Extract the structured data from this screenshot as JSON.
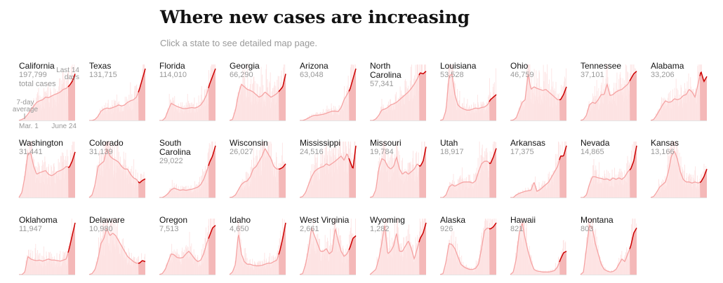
{
  "header": {
    "title": "Where new cases are increasing",
    "subtitle": "Click a state to see detailed map page."
  },
  "annotations": {
    "total_cases": "total cases",
    "last_14": "Last 14 days",
    "avg": "7-day average",
    "start": "Mar. 1",
    "end": "June 24"
  },
  "colors": {
    "daily_bars": "#fde3e3",
    "avg_line": "#f5a3a3",
    "last14_shade": "#f4b8b8",
    "last14_line": "#cc0000"
  },
  "chart_data": {
    "type": "line",
    "title": "Where new cases are increasing",
    "x_range": [
      "Mar. 1",
      "June 24"
    ],
    "highlight": "Last 14 days",
    "note": "values are relative 7-day average levels (fraction of panel height), estimated",
    "states": [
      {
        "name": "California",
        "total": "197,799",
        "avg": [
          0,
          0.02,
          0.05,
          0.12,
          0.2,
          0.28,
          0.35,
          0.38,
          0.4,
          0.45,
          0.44,
          0.47,
          0.5,
          0.52,
          0.55,
          0.6,
          0.62,
          0.67,
          0.75,
          0.9
        ]
      },
      {
        "name": "Texas",
        "total": "131,715",
        "avg": [
          0,
          0,
          0.02,
          0.08,
          0.18,
          0.22,
          0.24,
          0.23,
          0.25,
          0.27,
          0.3,
          0.28,
          0.3,
          0.35,
          0.38,
          0.4,
          0.45,
          0.6,
          0.8,
          1
        ]
      },
      {
        "name": "Florida",
        "total": "114,010",
        "avg": [
          0,
          0,
          0.05,
          0.2,
          0.33,
          0.3,
          0.27,
          0.25,
          0.23,
          0.23,
          0.24,
          0.25,
          0.24,
          0.26,
          0.3,
          0.38,
          0.5,
          0.7,
          0.85,
          1
        ]
      },
      {
        "name": "Georgia",
        "total": "66,290",
        "avg": [
          0,
          0.02,
          0.2,
          0.5,
          0.7,
          0.65,
          0.6,
          0.58,
          0.55,
          0.5,
          0.45,
          0.48,
          0.55,
          0.5,
          0.45,
          0.48,
          0.52,
          0.58,
          0.65,
          0.9
        ]
      },
      {
        "name": "Arizona",
        "total": "63,048",
        "avg": [
          0,
          0,
          0.02,
          0.05,
          0.08,
          0.1,
          0.1,
          0.11,
          0.12,
          0.14,
          0.16,
          0.18,
          0.18,
          0.17,
          0.25,
          0.4,
          0.5,
          0.6,
          0.8,
          1
        ]
      },
      {
        "name": "North Carolina",
        "total": "57,341",
        "avg": [
          0,
          0,
          0.03,
          0.1,
          0.2,
          0.22,
          0.25,
          0.3,
          0.32,
          0.35,
          0.4,
          0.45,
          0.5,
          0.55,
          0.62,
          0.7,
          0.8,
          0.92,
          0.9,
          0.95
        ]
      },
      {
        "name": "Louisiana",
        "total": "53,528",
        "avg": [
          0,
          0.02,
          0.2,
          0.85,
          0.9,
          0.5,
          0.3,
          0.25,
          0.22,
          0.2,
          0.2,
          0.22,
          0.24,
          0.23,
          0.25,
          0.26,
          0.3,
          0.4,
          0.45,
          0.5
        ]
      },
      {
        "name": "Ohio",
        "total": "46,759",
        "avg": [
          0,
          0.01,
          0.05,
          0.2,
          0.35,
          0.4,
          0.9,
          0.6,
          0.65,
          0.62,
          0.6,
          0.58,
          0.6,
          0.55,
          0.5,
          0.45,
          0.4,
          0.4,
          0.5,
          0.65
        ]
      },
      {
        "name": "Tennessee",
        "total": "37,101",
        "avg": [
          0,
          0.02,
          0.1,
          0.3,
          0.35,
          0.33,
          0.4,
          0.5,
          0.5,
          0.7,
          0.48,
          0.5,
          0.55,
          0.58,
          0.6,
          0.65,
          0.7,
          0.8,
          0.9,
          0.95
        ]
      },
      {
        "name": "Alabama",
        "total": "33,206",
        "avg": [
          0,
          0.02,
          0.1,
          0.2,
          0.3,
          0.38,
          0.35,
          0.36,
          0.42,
          0.4,
          0.42,
          0.48,
          0.5,
          0.6,
          0.55,
          0.45,
          0.7,
          0.95,
          0.75,
          0.85
        ]
      },
      {
        "name": "Washington",
        "total": "31,441",
        "avg": [
          0,
          0.1,
          0.4,
          0.85,
          0.85,
          0.6,
          0.45,
          0.48,
          0.5,
          0.52,
          0.45,
          0.42,
          0.45,
          0.5,
          0.52,
          0.55,
          0.6,
          0.58,
          0.7,
          0.88
        ]
      },
      {
        "name": "Colorado",
        "total": "31,139",
        "avg": [
          0,
          0.05,
          0.25,
          0.6,
          0.65,
          0.7,
          0.95,
          0.8,
          0.75,
          0.72,
          0.68,
          0.6,
          0.55,
          0.55,
          0.45,
          0.38,
          0.35,
          0.28,
          0.33,
          0.36
        ]
      },
      {
        "name": "South Carolina",
        "total": "29,022",
        "avg": [
          0,
          0,
          0.03,
          0.08,
          0.15,
          0.18,
          0.16,
          0.14,
          0.15,
          0.14,
          0.15,
          0.16,
          0.18,
          0.2,
          0.25,
          0.35,
          0.5,
          0.68,
          0.8,
          1
        ]
      },
      {
        "name": "Wisconsin",
        "total": "26,027",
        "avg": [
          0,
          0.01,
          0.05,
          0.15,
          0.25,
          0.3,
          0.32,
          0.4,
          0.55,
          0.6,
          0.7,
          0.8,
          0.95,
          0.85,
          0.75,
          0.6,
          0.55,
          0.55,
          0.58,
          0.65
        ]
      },
      {
        "name": "Mississippi",
        "total": "24,516",
        "avg": [
          0,
          0.02,
          0.1,
          0.25,
          0.4,
          0.5,
          0.55,
          0.58,
          0.6,
          0.65,
          0.62,
          0.66,
          0.7,
          0.75,
          0.8,
          0.72,
          0.85,
          0.7,
          0.55,
          1
        ]
      },
      {
        "name": "Missouri",
        "total": "19,784",
        "avg": [
          0,
          0.02,
          0.15,
          0.55,
          0.75,
          0.72,
          0.6,
          0.55,
          0.6,
          0.78,
          0.55,
          0.45,
          0.5,
          0.45,
          0.5,
          0.55,
          0.65,
          0.6,
          0.7,
          0.98
        ]
      },
      {
        "name": "Utah",
        "total": "18,917",
        "avg": [
          0,
          0,
          0.05,
          0.2,
          0.25,
          0.22,
          0.25,
          0.28,
          0.3,
          0.3,
          0.3,
          0.28,
          0.32,
          0.5,
          0.65,
          0.7,
          0.7,
          0.65,
          0.78,
          0.95
        ]
      },
      {
        "name": "Arkansas",
        "total": "17,375",
        "avg": [
          0,
          0,
          0.05,
          0.08,
          0.1,
          0.12,
          0.13,
          0.14,
          0.3,
          0.12,
          0.15,
          0.2,
          0.25,
          0.3,
          0.4,
          0.5,
          0.6,
          0.8,
          0.8,
          1
        ]
      },
      {
        "name": "Nevada",
        "total": "14,865",
        "avg": [
          0,
          0,
          0.05,
          0.25,
          0.4,
          0.4,
          0.38,
          0.37,
          0.35,
          0.36,
          0.33,
          0.38,
          0.35,
          0.38,
          0.35,
          0.4,
          0.5,
          0.55,
          0.7,
          1
        ]
      },
      {
        "name": "Kansas",
        "total": "13,166",
        "avg": [
          0,
          0.02,
          0.1,
          0.2,
          0.25,
          0.3,
          0.5,
          0.8,
          0.9,
          0.75,
          0.5,
          0.35,
          0.3,
          0.3,
          0.28,
          0.3,
          0.28,
          0.3,
          0.4,
          0.55
        ]
      },
      {
        "name": "Oklahoma",
        "total": "11,947",
        "avg": [
          0,
          0,
          0.05,
          0.35,
          0.3,
          0.28,
          0.27,
          0.28,
          0.26,
          0.28,
          0.3,
          0.28,
          0.28,
          0.27,
          0.26,
          0.28,
          0.3,
          0.5,
          0.75,
          1
        ]
      },
      {
        "name": "Delaware",
        "total": "10,980",
        "avg": [
          0,
          0.02,
          0.1,
          0.3,
          0.6,
          0.7,
          0.9,
          0.75,
          0.8,
          0.75,
          0.65,
          0.55,
          0.45,
          0.35,
          0.3,
          0.25,
          0.22,
          0.22,
          0.27,
          0.25
        ]
      },
      {
        "name": "Oregon",
        "total": "7,513",
        "avg": [
          0,
          0.02,
          0.1,
          0.25,
          0.4,
          0.38,
          0.33,
          0.32,
          0.33,
          0.4,
          0.45,
          0.38,
          0.3,
          0.25,
          0.28,
          0.4,
          0.6,
          0.75,
          0.9,
          0.95
        ]
      },
      {
        "name": "Idaho",
        "total": "4,650",
        "avg": [
          0,
          0.05,
          0.2,
          0.8,
          0.4,
          0.25,
          0.2,
          0.2,
          0.18,
          0.17,
          0.17,
          0.18,
          0.2,
          0.22,
          0.22,
          0.25,
          0.28,
          0.45,
          0.7,
          1
        ]
      },
      {
        "name": "West Virginia",
        "total": "2,661",
        "avg": [
          0,
          0.02,
          0.2,
          0.5,
          0.9,
          0.75,
          0.6,
          0.45,
          0.45,
          0.5,
          0.4,
          0.45,
          0.9,
          0.65,
          0.45,
          0.35,
          0.4,
          0.52,
          0.7,
          0.75
        ]
      },
      {
        "name": "Wyoming",
        "total": "1,282",
        "avg": [
          0,
          0.05,
          0.1,
          0.3,
          0.6,
          0.95,
          0.4,
          0.45,
          0.55,
          0.8,
          0.45,
          0.45,
          0.55,
          0.65,
          0.5,
          0.3,
          0.5,
          0.7,
          0.8,
          1
        ]
      },
      {
        "name": "Alaska",
        "total": "926",
        "avg": [
          0,
          0.02,
          0.25,
          0.6,
          0.58,
          0.5,
          0.35,
          0.2,
          0.15,
          0.12,
          0.1,
          0.1,
          0.12,
          0.2,
          0.5,
          0.85,
          0.9,
          0.88,
          0.92,
          1
        ]
      },
      {
        "name": "Hawaii",
        "total": "821",
        "avg": [
          0,
          0.05,
          0.3,
          0.8,
          1,
          0.7,
          0.45,
          0.25,
          0.1,
          0.07,
          0.06,
          0.05,
          0.05,
          0.05,
          0.06,
          0.08,
          0.15,
          0.3,
          0.42,
          0.45
        ]
      },
      {
        "name": "Montana",
        "total": "803",
        "avg": [
          0,
          0.05,
          0.5,
          0.95,
          0.9,
          0.6,
          0.4,
          0.2,
          0.1,
          0.07,
          0.05,
          0.06,
          0.1,
          0.2,
          0.3,
          0.25,
          0.4,
          0.55,
          0.8,
          0.9
        ]
      }
    ]
  }
}
